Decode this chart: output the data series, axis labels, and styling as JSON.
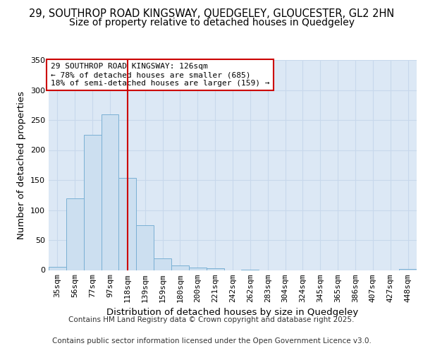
{
  "title_line1": "29, SOUTHROP ROAD KINGSWAY, QUEDGELEY, GLOUCESTER, GL2 2HN",
  "title_line2": "Size of property relative to detached houses in Quedgeley",
  "xlabel": "Distribution of detached houses by size in Quedgeley",
  "ylabel": "Number of detached properties",
  "bin_labels": [
    "35sqm",
    "56sqm",
    "77sqm",
    "97sqm",
    "118sqm",
    "139sqm",
    "159sqm",
    "180sqm",
    "200sqm",
    "221sqm",
    "242sqm",
    "262sqm",
    "283sqm",
    "304sqm",
    "324sqm",
    "345sqm",
    "365sqm",
    "386sqm",
    "407sqm",
    "427sqm",
    "448sqm"
  ],
  "bin_values": [
    5,
    120,
    225,
    260,
    153,
    75,
    20,
    8,
    4,
    3,
    0,
    1,
    0,
    0,
    0,
    0,
    0,
    0,
    0,
    0,
    2
  ],
  "bar_color": "#ccdff0",
  "bar_edge_color": "#7ab0d4",
  "bar_width": 1.0,
  "vline_x_index": 4,
  "vline_color": "#cc0000",
  "ylim": [
    0,
    350
  ],
  "yticks": [
    0,
    50,
    100,
    150,
    200,
    250,
    300,
    350
  ],
  "grid_color": "#c8d8ec",
  "background_color": "#dce8f5",
  "annotation_text": "29 SOUTHROP ROAD KINGSWAY: 126sqm\n← 78% of detached houses are smaller (685)\n18% of semi-detached houses are larger (159) →",
  "annotation_box_facecolor": "#ffffff",
  "annotation_box_edgecolor": "#cc0000",
  "footer_line1": "Contains HM Land Registry data © Crown copyright and database right 2025.",
  "footer_line2": "Contains public sector information licensed under the Open Government Licence v3.0.",
  "footnote_fontsize": 7.5,
  "title1_fontsize": 10.5,
  "title2_fontsize": 10,
  "axis_label_fontsize": 9.5,
  "tick_fontsize": 8,
  "annot_fontsize": 8
}
